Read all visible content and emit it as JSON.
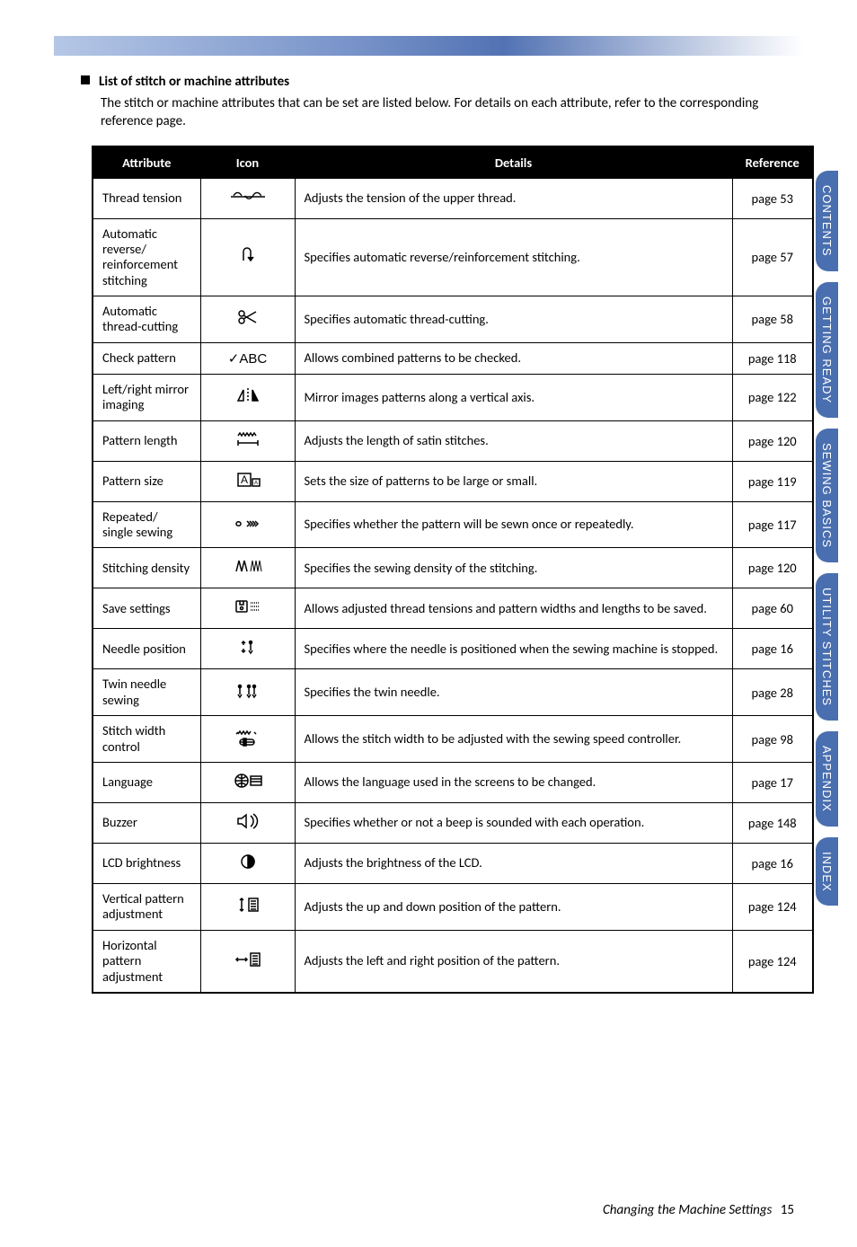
{
  "header": {
    "gradient_start": "#b5c7e6",
    "gradient_mid": "#5272b3",
    "gradient_end": "#ffffff"
  },
  "section": {
    "title": "List of stitch or machine attributes",
    "intro": "The stitch or machine attributes that can be set are listed below. For details on each attribute, refer to the corresponding reference page."
  },
  "table": {
    "headers": [
      "Attribute",
      "Icon",
      "Details",
      "Reference"
    ],
    "rows": [
      {
        "attr": "Thread tension",
        "icon": "tension",
        "details": "Adjusts the tension of the upper thread.",
        "ref": "page 53"
      },
      {
        "attr": "Automatic reverse/\nreinforcement stitching",
        "icon": "reverse",
        "details": "Specifies automatic reverse/reinforcement stitching.",
        "ref": "page 57"
      },
      {
        "attr": "Automatic thread-cutting",
        "icon": "scissors",
        "details": "Specifies automatic thread-cutting.",
        "ref": "page 58"
      },
      {
        "attr": "Check pattern",
        "icon": "check-abc",
        "details": "Allows combined patterns to be checked.",
        "ref": "page 118"
      },
      {
        "attr": "Left/right mirror imaging",
        "icon": "mirror",
        "details": "Mirror images patterns along a vertical axis.",
        "ref": "page 122"
      },
      {
        "attr": "Pattern length",
        "icon": "length",
        "details": "Adjusts the length of satin stitches.",
        "ref": "page 120"
      },
      {
        "attr": "Pattern size",
        "icon": "size",
        "details": "Sets the size of patterns to be large or small.",
        "ref": "page 119"
      },
      {
        "attr": "Repeated/\nsingle sewing",
        "icon": "repeat",
        "details": "Specifies whether the pattern will be sewn once or repeatedly.",
        "ref": "page 117"
      },
      {
        "attr": "Stitching density",
        "icon": "density",
        "details": "Specifies the sewing density of the stitching.",
        "ref": "page 120"
      },
      {
        "attr": "Save settings",
        "icon": "save",
        "details": "Allows adjusted thread tensions and pattern widths and lengths to be saved.",
        "ref": "page 60"
      },
      {
        "attr": "Needle position",
        "icon": "needle-pos",
        "details": "Specifies where the needle is positioned when the sewing machine is stopped.",
        "ref": "page 16"
      },
      {
        "attr": "Twin needle sewing",
        "icon": "twin",
        "details": "Specifies the twin needle.",
        "ref": "page 28"
      },
      {
        "attr": "Stitch width control",
        "icon": "width-ctrl",
        "details": "Allows the stitch width to be adjusted with the sewing speed controller.",
        "ref": "page 98"
      },
      {
        "attr": "Language",
        "icon": "language",
        "details": "Allows the language used in the screens to be changed.",
        "ref": "page 17"
      },
      {
        "attr": "Buzzer",
        "icon": "buzzer",
        "details": "Specifies whether or not a beep is sounded with each operation.",
        "ref": "page 148"
      },
      {
        "attr": "LCD brightness",
        "icon": "brightness",
        "details": "Adjusts the brightness of the LCD.",
        "ref": "page 16"
      },
      {
        "attr": "Vertical pattern adjustment",
        "icon": "v-adjust",
        "details": "Adjusts the up and down position of the pattern.",
        "ref": "page 124"
      },
      {
        "attr": "Horizontal pattern adjustment",
        "icon": "h-adjust",
        "details": "Adjusts the left and right position of the pattern.",
        "ref": "page 124"
      }
    ]
  },
  "tabs": [
    "CONTENTS",
    "GETTING READY",
    "SEWING BASICS",
    "UTILITY STITCHES",
    "APPENDIX",
    "INDEX"
  ],
  "footer": {
    "title": "Changing the Machine Settings",
    "page": "15"
  },
  "colors": {
    "tab_bg": "#4a6fb0",
    "table_header_bg": "#000000",
    "table_header_fg": "#ffffff"
  }
}
